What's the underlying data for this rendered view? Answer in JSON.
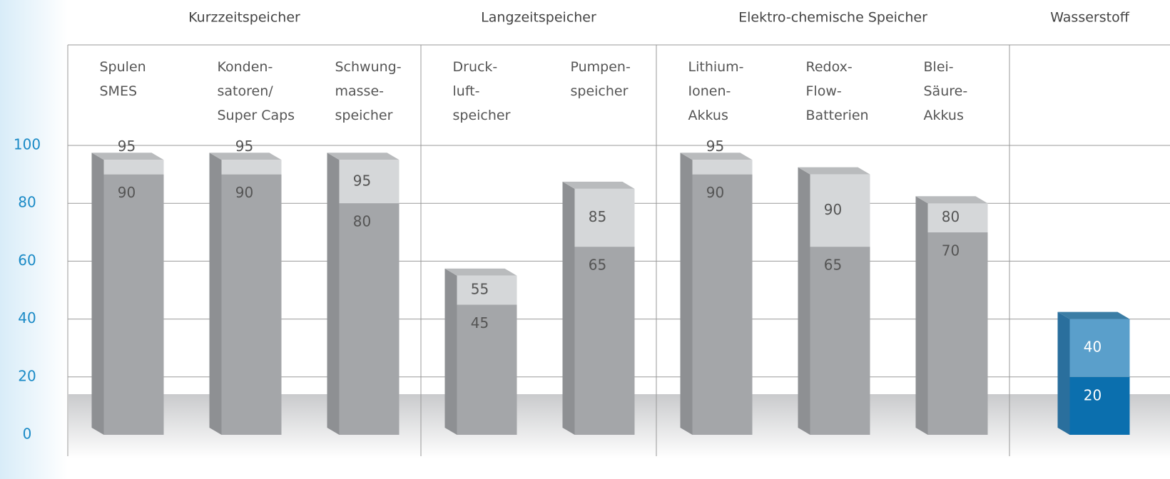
{
  "chart_data": {
    "type": "floating-bar",
    "groups": [
      {
        "label": "Kurzzeitspeicher",
        "categories": [
          "Spulen\nSMES",
          "Konden-\nsatoren/\nSuper Caps",
          "Schwung-\nmasse-\nspeicher"
        ]
      },
      {
        "label": "Langzeitspeicher",
        "categories": [
          "Druck-\nluft-\nspeicher",
          "Pumpen-\nspeicher"
        ]
      },
      {
        "label": "Elektro-chemische Speicher",
        "categories": [
          "Lithium-\nIonen-\nAkkus",
          "Redox-\nFlow-\nBatterien",
          "Blei-\nSäure-\nAkkus"
        ]
      },
      {
        "label": "Wasserstoff",
        "categories": []
      }
    ],
    "series": [
      {
        "values": [
          90,
          90,
          80,
          45,
          65,
          90,
          65,
          70,
          20
        ],
        "colors": [
          "#a4a6a9",
          "#a4a6a9",
          "#a4a6a9",
          "#a4a6a9",
          "#a4a6a9",
          "#a4a6a9",
          "#a4a6a9",
          "#a4a6a9",
          "#0b6fae"
        ]
      },
      {
        "values": [
          95,
          95,
          95,
          55,
          85,
          95,
          90,
          80,
          40
        ],
        "colors": [
          "#d5d7d9",
          "#d5d7d9",
          "#d5d7d9",
          "#d5d7d9",
          "#d5d7d9",
          "#d5d7d9",
          "#d5d7d9",
          "#d5d7d9",
          "#5a9fcb"
        ]
      }
    ],
    "ylim": [
      0,
      100
    ],
    "yticks": [
      0,
      20,
      40,
      60,
      80,
      100
    ],
    "grid": true
  }
}
